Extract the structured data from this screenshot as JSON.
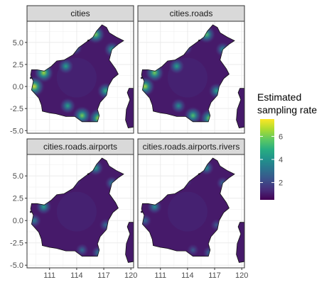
{
  "chart_data": {
    "type": "heatmap",
    "title": "",
    "xlabel": "",
    "ylabel": "",
    "x_ticks": [
      "111",
      "114",
      "117",
      "120"
    ],
    "x_tick_values": [
      111,
      114,
      117,
      120
    ],
    "y_ticks": [
      "5.0",
      "2.5",
      "0.0",
      "-2.5",
      "-5.0"
    ],
    "y_tick_values": [
      5.0,
      2.5,
      0.0,
      -2.5,
      -5.0
    ],
    "xlim": [
      108.5,
      120.3
    ],
    "ylim": [
      -5.3,
      7.4
    ],
    "grid": true,
    "facets": [
      {
        "label": "cities",
        "hotspots": [
          {
            "lon": 116.1,
            "lat": 5.9,
            "rate": 6
          },
          {
            "lon": 117.9,
            "lat": 4.2,
            "rate": 4.5
          },
          {
            "lon": 110.35,
            "lat": 1.55,
            "rate": 6.5
          },
          {
            "lon": 109.3,
            "lat": 0.0,
            "rate": 7
          },
          {
            "lon": 112.8,
            "lat": 2.3,
            "rate": 4.5
          },
          {
            "lon": 113.8,
            "lat": 4.4,
            "rate": 4
          },
          {
            "lon": 117.2,
            "lat": -0.5,
            "rate": 5
          },
          {
            "lon": 114.6,
            "lat": -3.3,
            "rate": 6
          },
          {
            "lon": 116.4,
            "lat": -3.6,
            "rate": 6.5
          },
          {
            "lon": 113.0,
            "lat": -2.2,
            "rate": 4.5
          }
        ]
      },
      {
        "label": "cities.roads",
        "hotspots": [
          {
            "lon": 116.1,
            "lat": 5.9,
            "rate": 5.5
          },
          {
            "lon": 117.9,
            "lat": 4.2,
            "rate": 4
          },
          {
            "lon": 110.35,
            "lat": 1.55,
            "rate": 6
          },
          {
            "lon": 109.3,
            "lat": 0.0,
            "rate": 6.5
          },
          {
            "lon": 112.8,
            "lat": 2.3,
            "rate": 4.5
          },
          {
            "lon": 113.8,
            "lat": 4.4,
            "rate": 3.5
          },
          {
            "lon": 117.2,
            "lat": -0.5,
            "rate": 4.5
          },
          {
            "lon": 114.6,
            "lat": -3.3,
            "rate": 5.5
          },
          {
            "lon": 116.4,
            "lat": -3.6,
            "rate": 6
          },
          {
            "lon": 113.0,
            "lat": -2.2,
            "rate": 4
          }
        ]
      },
      {
        "label": "cities.roads.airports",
        "hotspots": [
          {
            "lon": 116.1,
            "lat": 5.9,
            "rate": 4.5
          },
          {
            "lon": 117.9,
            "lat": 4.2,
            "rate": 3.5
          },
          {
            "lon": 110.35,
            "lat": 1.55,
            "rate": 4.5
          },
          {
            "lon": 109.3,
            "lat": 0.0,
            "rate": 3.5
          },
          {
            "lon": 113.8,
            "lat": 4.4,
            "rate": 2.5
          },
          {
            "lon": 117.2,
            "lat": -0.5,
            "rate": 3
          },
          {
            "lon": 114.6,
            "lat": -3.3,
            "rate": 3
          },
          {
            "lon": 116.4,
            "lat": -3.6,
            "rate": 3.5
          }
        ]
      },
      {
        "label": "cities.roads.airports.rivers",
        "hotspots": [
          {
            "lon": 116.1,
            "lat": 5.9,
            "rate": 4
          },
          {
            "lon": 117.9,
            "lat": 4.2,
            "rate": 3
          },
          {
            "lon": 110.35,
            "lat": 1.55,
            "rate": 4
          },
          {
            "lon": 109.3,
            "lat": 0.0,
            "rate": 3
          },
          {
            "lon": 113.8,
            "lat": 4.4,
            "rate": 2.5
          },
          {
            "lon": 117.2,
            "lat": -0.5,
            "rate": 2.5
          },
          {
            "lon": 114.6,
            "lat": -3.3,
            "rate": 2.5
          },
          {
            "lon": 116.4,
            "lat": -3.6,
            "rate": 3
          }
        ]
      }
    ],
    "base_rate": 1,
    "landmass_outline": [
      [
        109.0,
        1.9
      ],
      [
        109.6,
        1.9
      ],
      [
        110.4,
        1.75
      ],
      [
        111.2,
        2.3
      ],
      [
        111.8,
        2.9
      ],
      [
        112.6,
        3.0
      ],
      [
        113.6,
        3.6
      ],
      [
        114.2,
        4.4
      ],
      [
        115.0,
        5.0
      ],
      [
        115.8,
        5.6
      ],
      [
        116.2,
        6.3
      ],
      [
        116.8,
        7.0
      ],
      [
        117.3,
        6.7
      ],
      [
        117.6,
        6.1
      ],
      [
        118.4,
        5.6
      ],
      [
        119.2,
        5.2
      ],
      [
        118.6,
        4.8
      ],
      [
        117.9,
        4.2
      ],
      [
        117.6,
        3.0
      ],
      [
        118.3,
        2.0
      ],
      [
        118.6,
        1.4
      ],
      [
        118.0,
        0.9
      ],
      [
        117.5,
        0.0
      ],
      [
        117.3,
        -1.0
      ],
      [
        116.6,
        -1.8
      ],
      [
        116.3,
        -2.6
      ],
      [
        116.5,
        -3.3
      ],
      [
        116.3,
        -4.0
      ],
      [
        115.4,
        -4.0
      ],
      [
        114.6,
        -4.0
      ],
      [
        113.8,
        -3.4
      ],
      [
        112.8,
        -3.4
      ],
      [
        111.7,
        -3.1
      ],
      [
        111.0,
        -3.0
      ],
      [
        110.2,
        -2.8
      ],
      [
        110.1,
        -2.1
      ],
      [
        109.8,
        -1.3
      ],
      [
        109.0,
        -0.4
      ],
      [
        109.2,
        0.6
      ],
      [
        108.9,
        1.3
      ]
    ],
    "sulawesi_outline": [
      [
        119.8,
        -0.2
      ],
      [
        120.3,
        -0.2
      ],
      [
        120.3,
        -4.6
      ],
      [
        119.7,
        -4.7
      ],
      [
        119.4,
        -3.8
      ],
      [
        119.5,
        -2.6
      ],
      [
        119.9,
        -1.5
      ],
      [
        119.6,
        -0.7
      ]
    ],
    "island_outlines": [
      [
        [
          108.85,
          1.05
        ],
        [
          109.0,
          1.1
        ],
        [
          109.0,
          0.9
        ],
        [
          108.85,
          0.9
        ]
      ],
      [
        [
          115.2,
          5.25
        ],
        [
          115.35,
          5.3
        ],
        [
          115.35,
          5.15
        ],
        [
          115.2,
          5.15
        ]
      ]
    ],
    "colorbar": {
      "title": "Estimated sampling rate",
      "title_lines": [
        "Estimated",
        "sampling rate"
      ],
      "min": 0.5,
      "max": 7.5,
      "ticks": [
        2,
        4,
        6
      ],
      "tick_labels": [
        "2",
        "4",
        "6"
      ],
      "palette": [
        "#440154",
        "#472d7b",
        "#3b528b",
        "#2c728e",
        "#21918c",
        "#28ae80",
        "#5ec962",
        "#addc30",
        "#fde725"
      ]
    }
  }
}
